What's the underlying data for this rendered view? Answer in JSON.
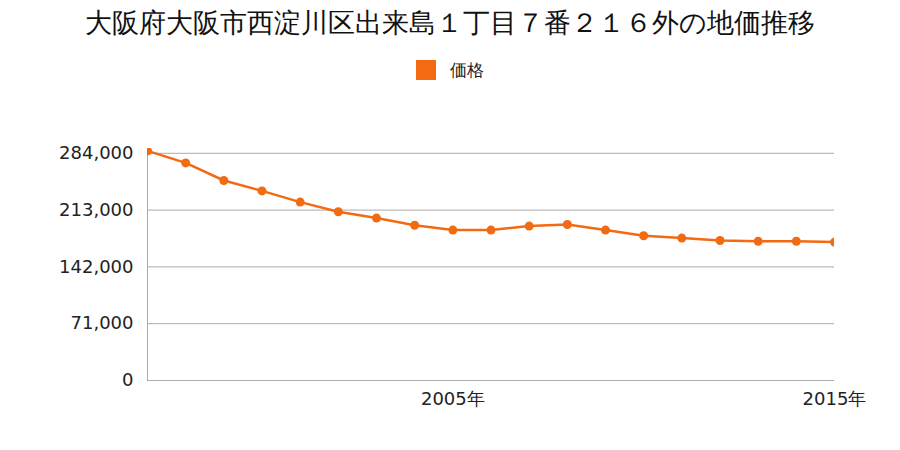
{
  "chart_data": {
    "type": "line",
    "title": "大阪府大阪市西淀川区出来島１丁目７番２１６外の地価推移",
    "x": [
      1997,
      1998,
      1999,
      2000,
      2001,
      2002,
      2003,
      2004,
      2005,
      2006,
      2007,
      2008,
      2009,
      2010,
      2011,
      2012,
      2013,
      2014,
      2015
    ],
    "series": [
      {
        "name": "価格",
        "color": "#f26b12",
        "marker": "circle",
        "values": [
          287000,
          272000,
          250000,
          237000,
          223000,
          211000,
          203000,
          194000,
          188000,
          188000,
          193000,
          195000,
          188000,
          181000,
          178000,
          175000,
          174000,
          174000,
          173000
        ]
      }
    ],
    "xlim": [
      1997,
      2015
    ],
    "xticks": [
      {
        "value": 2005,
        "label": "2005年"
      },
      {
        "value": 2015,
        "label": "2015年"
      }
    ],
    "ylim": [
      0,
      290000
    ],
    "yticks": [
      0,
      {
        "value": 71000,
        "label": "71,000"
      },
      {
        "value": 142000,
        "label": "142,000"
      },
      {
        "value": 213000,
        "label": "213,000"
      },
      {
        "value": 284000,
        "label": "284,000"
      }
    ],
    "grid": true,
    "legend": "top"
  }
}
